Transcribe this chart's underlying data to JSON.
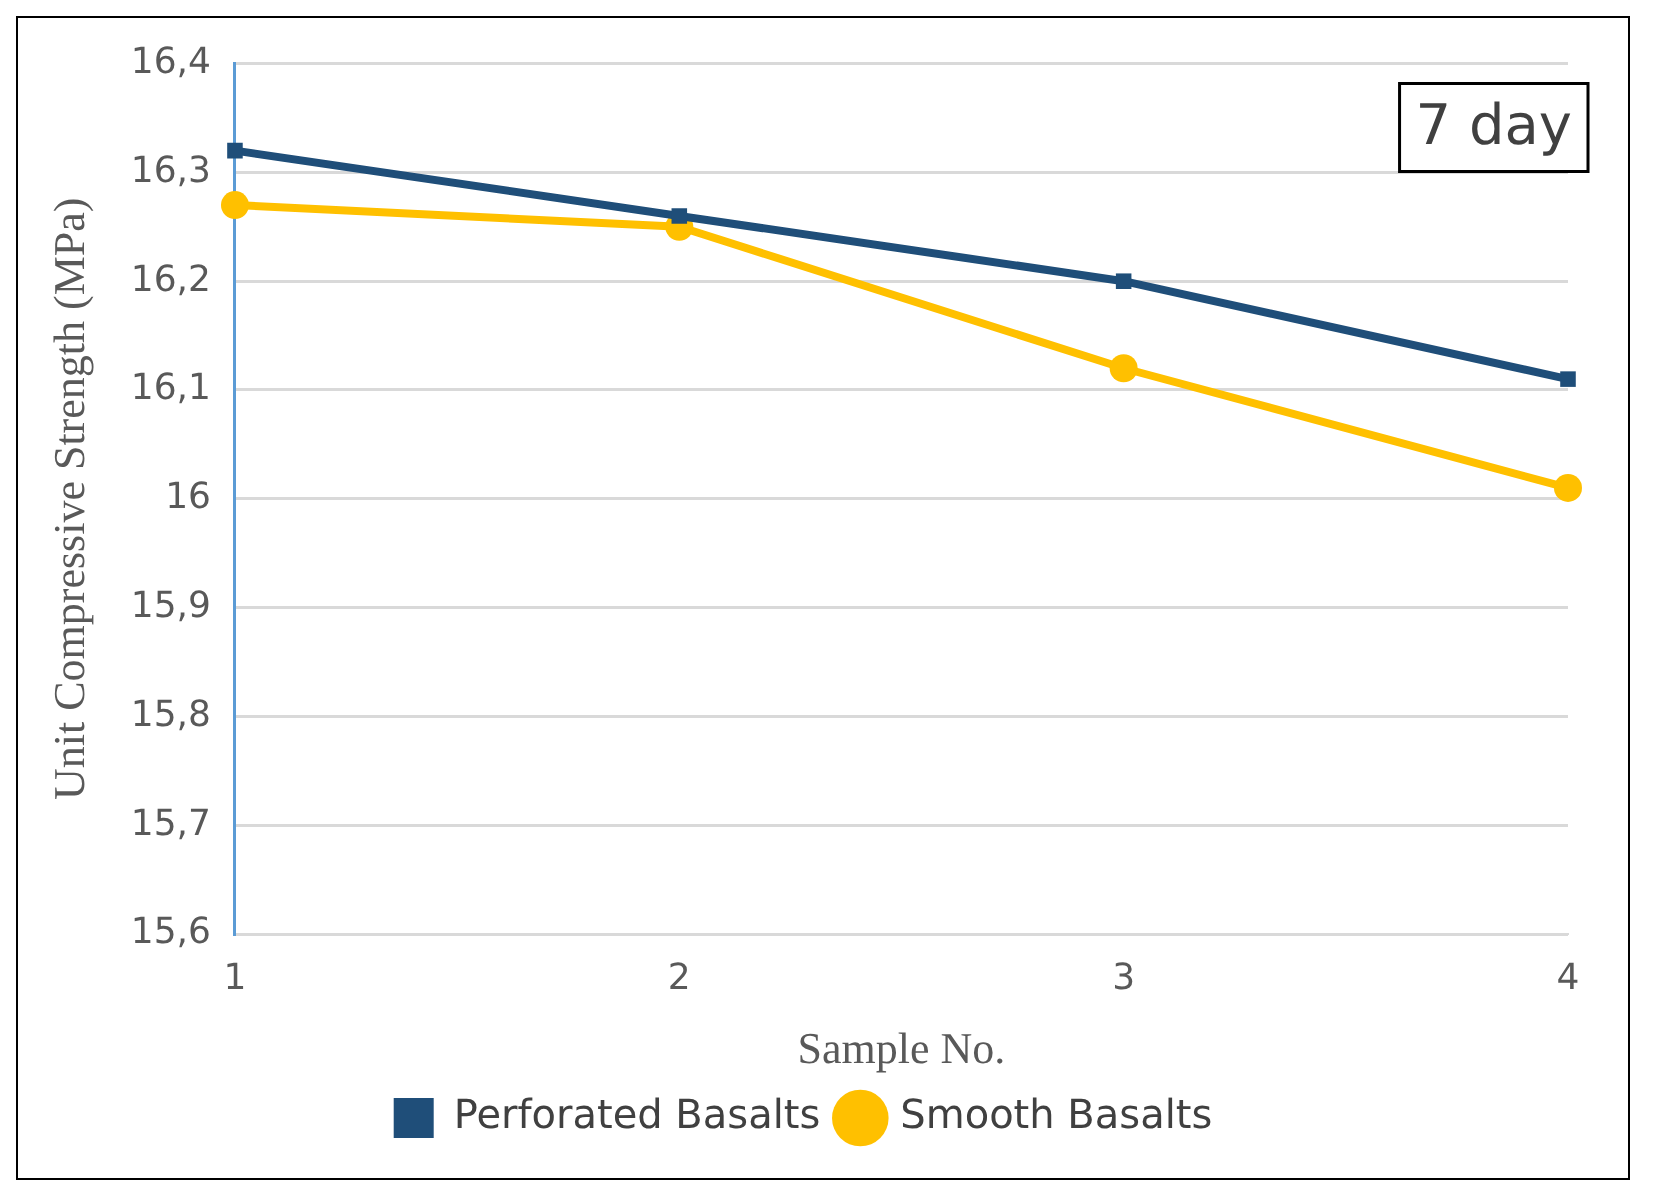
{
  "chart_data": {
    "type": "line",
    "xlabel": "Sample No.",
    "ylabel": "Unit Compressive Strength (MPa)",
    "categories": [
      "1",
      "2",
      "3",
      "4"
    ],
    "series": [
      {
        "name": "Perforated Basalts",
        "color": "#1f4e79",
        "marker": "square",
        "values": [
          16.32,
          16.26,
          16.2,
          16.11
        ]
      },
      {
        "name": "Smooth Basalts",
        "color": "#ffc000",
        "marker": "circle",
        "values": [
          16.27,
          16.25,
          16.12,
          16.01
        ]
      }
    ],
    "ylim": [
      15.6,
      16.4
    ],
    "yticks": [
      {
        "value": 15.6,
        "label": "15,6"
      },
      {
        "value": 15.7,
        "label": "15,7"
      },
      {
        "value": 15.8,
        "label": "15,8"
      },
      {
        "value": 15.9,
        "label": "15,9"
      },
      {
        "value": 16,
        "label": "16"
      },
      {
        "value": 16.1,
        "label": "16,1"
      },
      {
        "value": 16.2,
        "label": "16,2"
      },
      {
        "value": 16.3,
        "label": "16,3"
      },
      {
        "value": 16.4,
        "label": "16,4"
      }
    ],
    "grid": "y",
    "legend": "bottom",
    "line_style": "solid",
    "annotations": [
      "7 day"
    ]
  }
}
